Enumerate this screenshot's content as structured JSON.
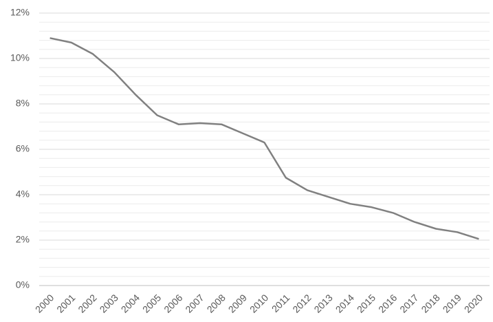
{
  "chart_data": {
    "type": "line",
    "categories": [
      "2000",
      "2001",
      "2002",
      "2003",
      "2004",
      "2005",
      "2006",
      "2007",
      "2008",
      "2009",
      "2010",
      "2011",
      "2012",
      "2013",
      "2014",
      "2015",
      "2016",
      "2017",
      "2018",
      "2019",
      "2020"
    ],
    "series": [
      {
        "color": "#808080",
        "values": [
          10.9,
          10.7,
          10.2,
          9.4,
          8.4,
          7.5,
          7.1,
          7.15,
          7.1,
          6.7,
          6.3,
          4.75,
          4.2,
          3.9,
          3.6,
          3.45,
          3.2,
          2.8,
          2.5,
          2.35,
          2.05
        ]
      }
    ],
    "ylim": [
      0,
      12
    ],
    "yticks": [
      {
        "value": 0,
        "label": "0%"
      },
      {
        "value": 2,
        "label": "2%"
      },
      {
        "value": 4,
        "label": "4%"
      },
      {
        "value": 6,
        "label": "6%"
      },
      {
        "value": 8,
        "label": "8%"
      },
      {
        "value": 10,
        "label": "10%"
      },
      {
        "value": 12,
        "label": "12%"
      }
    ],
    "minor_yticks": [
      0.4,
      0.8,
      1.2,
      1.6,
      2.4,
      2.8,
      3.2,
      3.6,
      4.4,
      4.8,
      5.2,
      5.6,
      6.4,
      6.8,
      7.2,
      7.6,
      8.4,
      8.8,
      9.2,
      9.6,
      10.4,
      10.8,
      11.2,
      11.6
    ],
    "grid": true
  }
}
